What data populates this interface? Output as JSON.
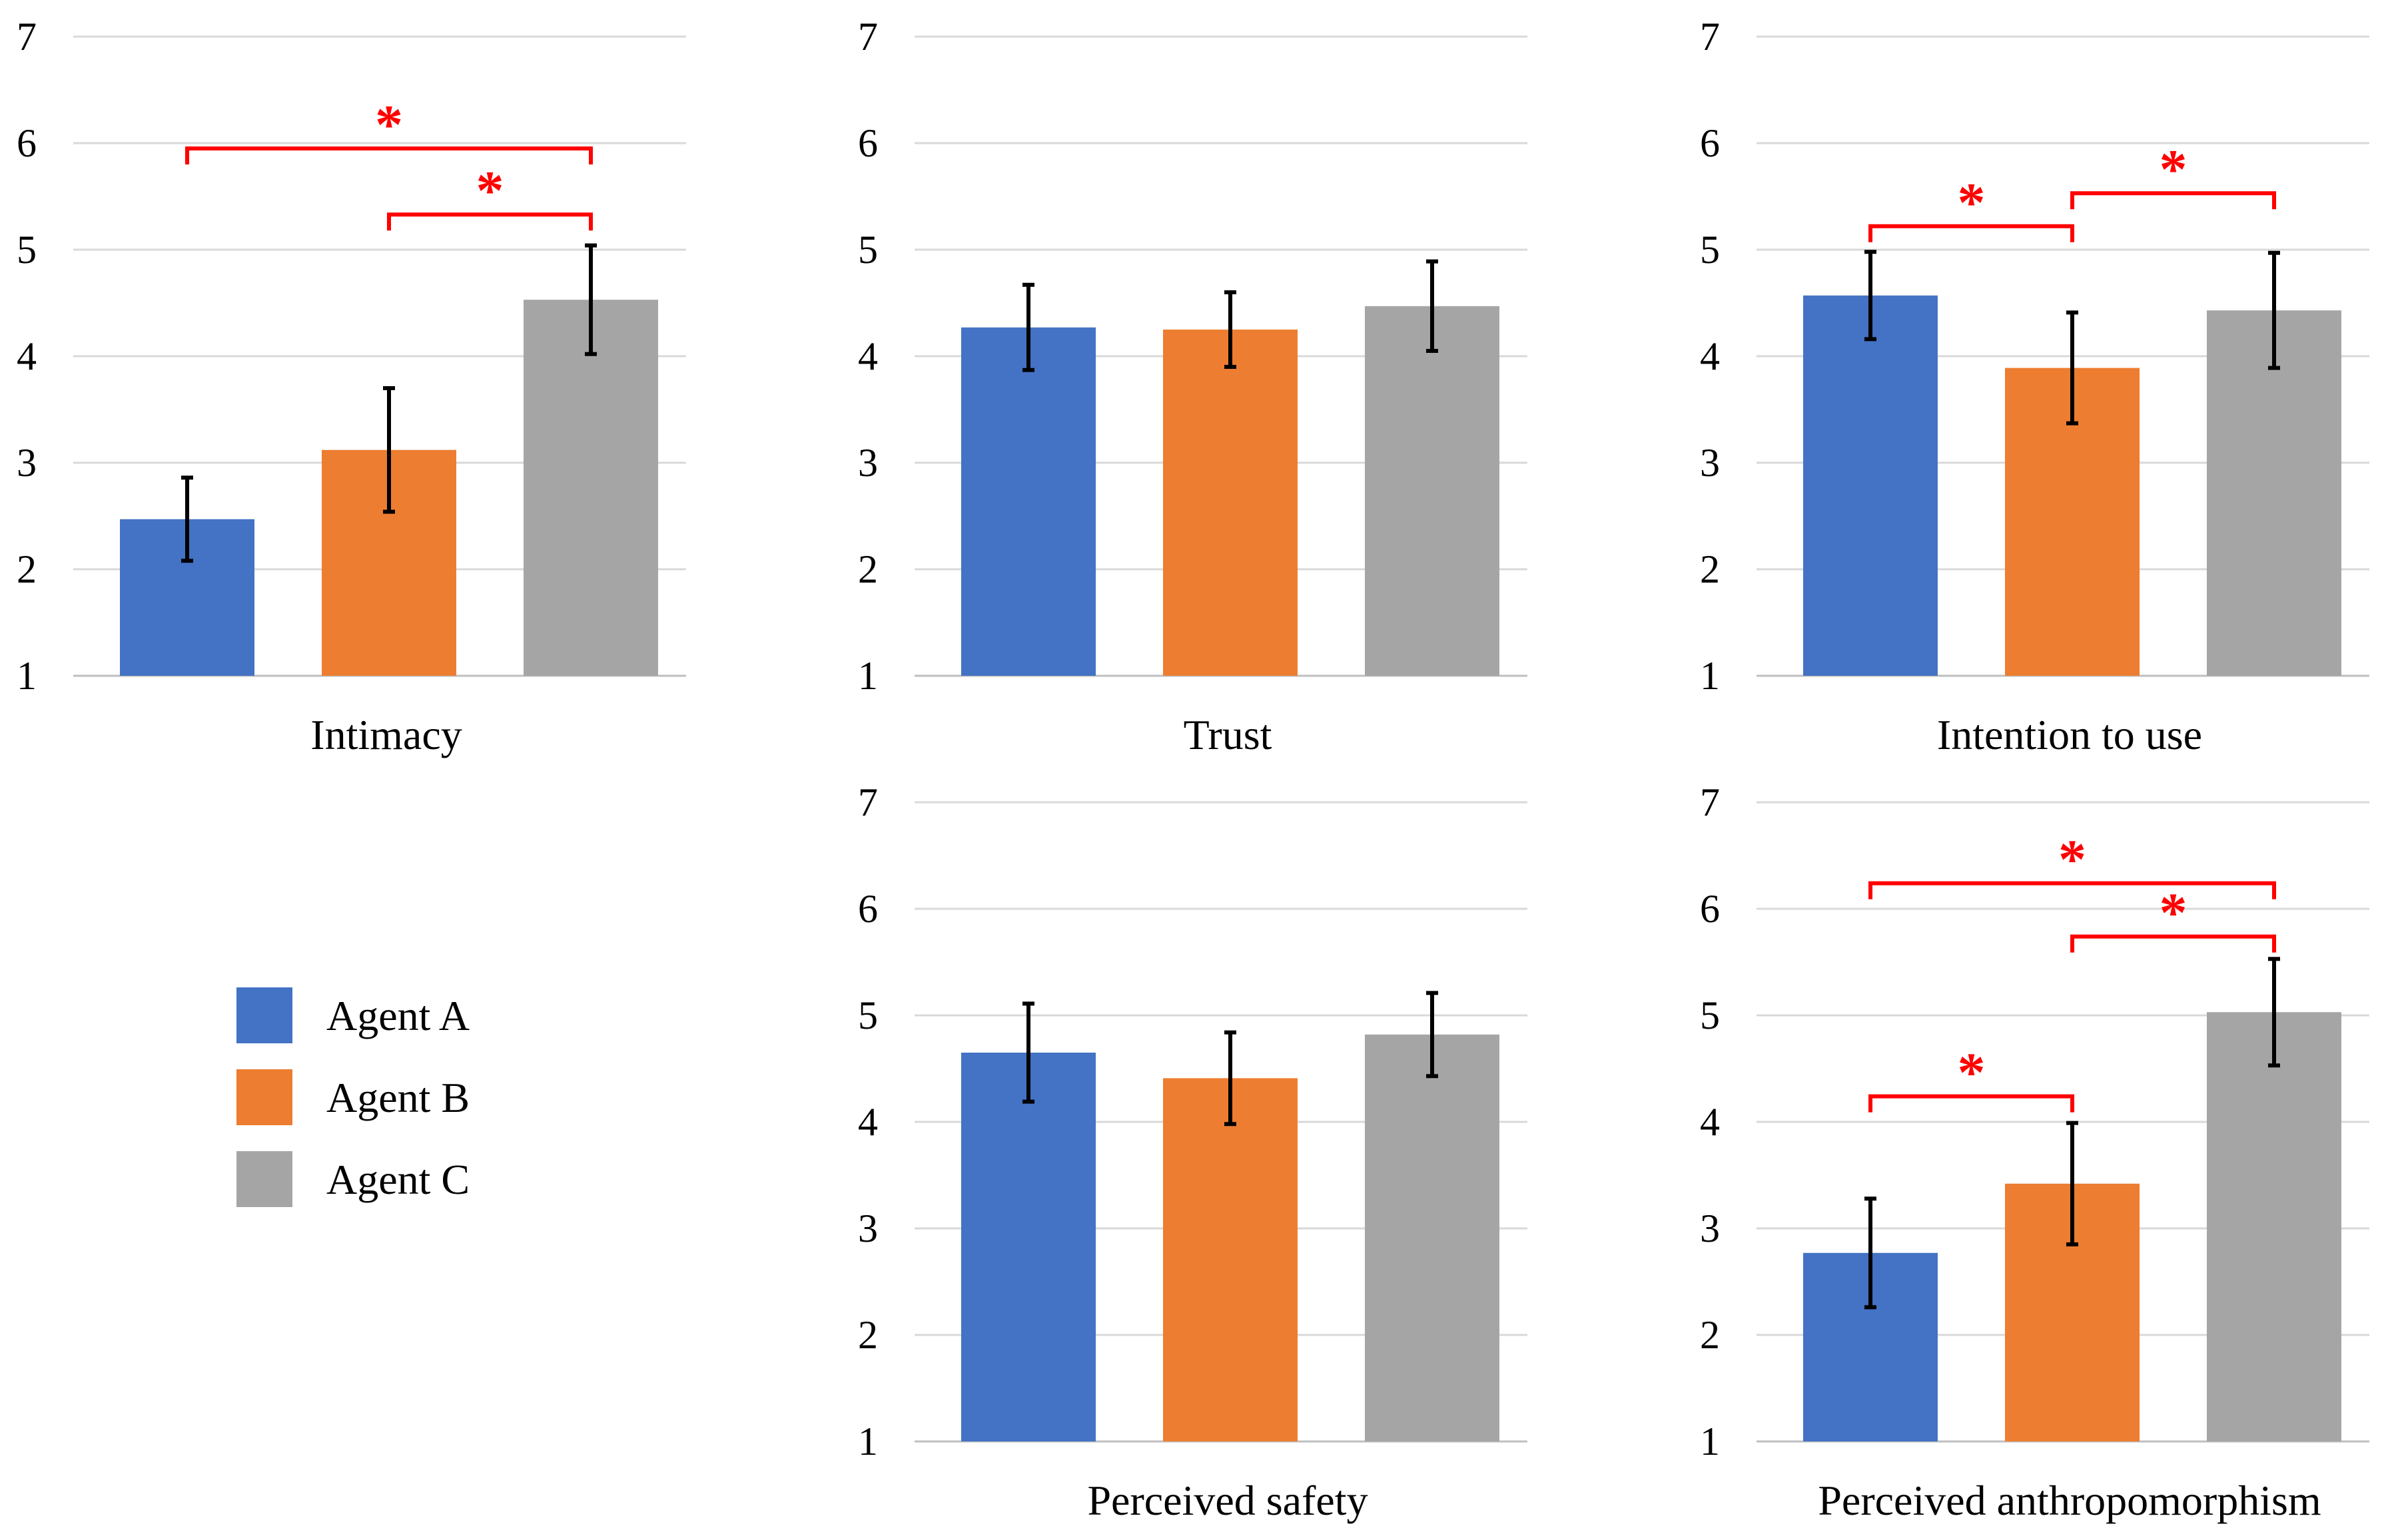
{
  "colors": {
    "agent_a": "#4472c4",
    "agent_b": "#ed7d31",
    "agent_c": "#a5a5a5",
    "significance": "#ff0000"
  },
  "legend": [
    {
      "label": "Agent A",
      "color": "#4472c4"
    },
    {
      "label": "Agent B",
      "color": "#ed7d31"
    },
    {
      "label": "Agent C",
      "color": "#a5a5a5"
    }
  ],
  "significance_marker": "*",
  "chart_data": [
    {
      "type": "bar",
      "xlabel": "Intimacy",
      "ylim": [
        1,
        7
      ],
      "yticks": [
        "1",
        "2",
        "3",
        "4",
        "5",
        "6",
        "7"
      ],
      "series": [
        {
          "name": "Agent A",
          "value": 2.47,
          "error": 0.39
        },
        {
          "name": "Agent B",
          "value": 3.12,
          "error": 0.58
        },
        {
          "name": "Agent C",
          "value": 4.53,
          "error": 0.51
        }
      ],
      "significance": [
        {
          "from": 0,
          "to": 2,
          "level": 5.95,
          "label": "*"
        },
        {
          "from": 1,
          "to": 2,
          "level": 5.33,
          "label": "*"
        }
      ]
    },
    {
      "type": "bar",
      "xlabel": "Trust",
      "ylim": [
        1,
        7
      ],
      "yticks": [
        "1",
        "2",
        "3",
        "4",
        "5",
        "6",
        "7"
      ],
      "series": [
        {
          "name": "Agent A",
          "value": 4.27,
          "error": 0.4
        },
        {
          "name": "Agent B",
          "value": 4.25,
          "error": 0.35
        },
        {
          "name": "Agent C",
          "value": 4.47,
          "error": 0.42
        }
      ],
      "significance": []
    },
    {
      "type": "bar",
      "xlabel": "Intention to use",
      "ylim": [
        1,
        7
      ],
      "yticks": [
        "1",
        "2",
        "3",
        "4",
        "5",
        "6",
        "7"
      ],
      "series": [
        {
          "name": "Agent A",
          "value": 4.57,
          "error": 0.41
        },
        {
          "name": "Agent B",
          "value": 3.89,
          "error": 0.52
        },
        {
          "name": "Agent C",
          "value": 4.43,
          "error": 0.54
        }
      ],
      "significance": [
        {
          "from": 0,
          "to": 1,
          "level": 5.22,
          "label": "*"
        },
        {
          "from": 1,
          "to": 2,
          "level": 5.53,
          "label": "*"
        }
      ]
    },
    {
      "type": "bar",
      "xlabel": "Perceived safety",
      "ylim": [
        1,
        7
      ],
      "yticks": [
        "1",
        "2",
        "3",
        "4",
        "5",
        "6",
        "7"
      ],
      "series": [
        {
          "name": "Agent A",
          "value": 4.65,
          "error": 0.46
        },
        {
          "name": "Agent B",
          "value": 4.41,
          "error": 0.43
        },
        {
          "name": "Agent C",
          "value": 4.82,
          "error": 0.39
        }
      ],
      "significance": []
    },
    {
      "type": "bar",
      "xlabel": "Perceived anthropomorphism",
      "ylim": [
        1,
        7
      ],
      "yticks": [
        "1",
        "2",
        "3",
        "4",
        "5",
        "6",
        "7"
      ],
      "series": [
        {
          "name": "Agent A",
          "value": 2.77,
          "error": 0.51
        },
        {
          "name": "Agent B",
          "value": 3.42,
          "error": 0.57
        },
        {
          "name": "Agent C",
          "value": 5.03,
          "error": 0.5
        }
      ],
      "significance": [
        {
          "from": 0,
          "to": 2,
          "level": 6.24,
          "label": "*"
        },
        {
          "from": 1,
          "to": 2,
          "level": 5.74,
          "label": "*"
        },
        {
          "from": 0,
          "to": 1,
          "level": 4.24,
          "label": "*"
        }
      ]
    }
  ]
}
